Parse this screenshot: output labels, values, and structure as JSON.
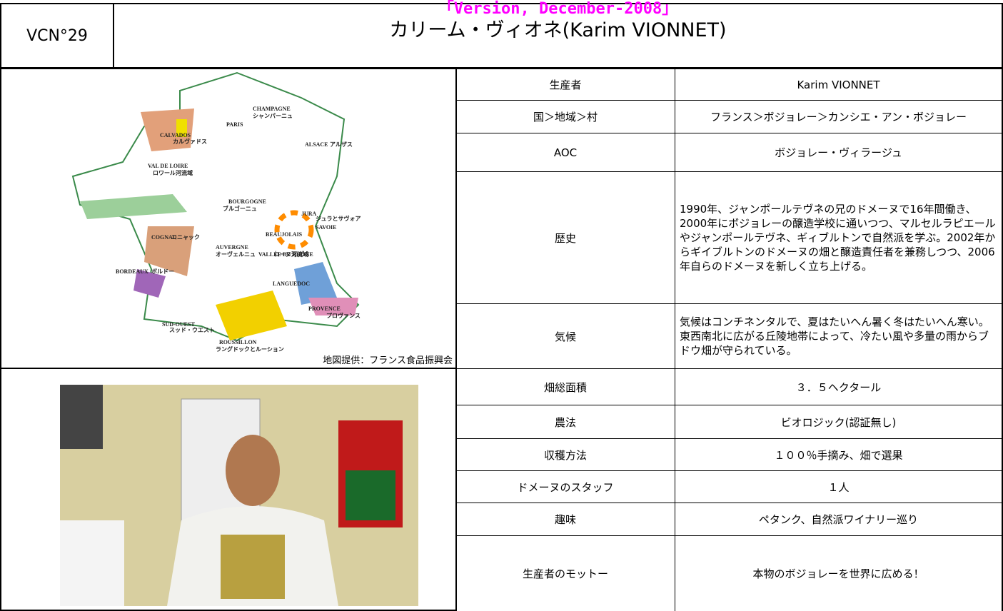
{
  "header": {
    "code": "VCN°29",
    "version": "「Version, December-2008」",
    "title": "カリーム・ヴィオネ(Karim VIONNET)"
  },
  "map": {
    "credit": "地図提供：フランス食品振興会",
    "labels": [
      "CHAMPAGNE",
      "シャンパーニュ",
      "CALVADOS",
      "カルヴァドス",
      "PARIS",
      "ALSACE",
      "アルザス",
      "VAL DE LOIRE",
      "ロワール河流域",
      "BOURGOGNE",
      "ブルゴーニュ",
      "JURA",
      "ジュラとサヴォア",
      "SAVOIE",
      "BEAUJOLAIS",
      "COGNAC",
      "コニャック",
      "AUVERGNE",
      "オーヴェルニュ",
      "VALLÉE DU RHÔNE",
      "ローヌ河流域",
      "BORDEAUX",
      "ボルドー",
      "LANGUEDOC",
      "PROVENCE",
      "プロヴァンス",
      "SUD-OUEST",
      "スッド・ウエスト",
      "ROUSSILLON",
      "ラングドックとルーション"
    ]
  },
  "table": {
    "rows": [
      [
        "生産者",
        "Karim VIONNET"
      ],
      [
        "国＞地域＞村",
        "フランス＞ボジョレー＞カンシエ・アン・ボジョレー"
      ],
      [
        "AOC",
        "ボジョレー・ヴィラージュ"
      ],
      [
        "歴史",
        "1990年、ジャンポールテヴネの兄のドメーヌで16年間働き、2000年にボジョレーの醸造学校に通いつつ、マルセルラピエールやジャンポールテヴネ、ギィブルトンで自然派を学ぶ。2002年からギイブルトンのドメーヌの畑と醸造責任者を兼務しつつ、2006年自らのドメーヌを新しく立ち上げる。"
      ],
      [
        "気候",
        "気候はコンチネンタルで、夏はたいへん暑く冬はたいへん寒い。東西南北に広がる丘陵地帯によって、冷たい風や多量の雨からブドウ畑が守られている。"
      ],
      [
        "畑総面積",
        "３．５ヘクタール"
      ],
      [
        "農法",
        "ビオロジック(認証無し)"
      ],
      [
        "収穫方法",
        "１００％手摘み、畑で選果"
      ],
      [
        "ドメーヌのスタッフ",
        "１人"
      ],
      [
        "趣味",
        "ペタンク、自然派ワイナリー巡り"
      ],
      [
        "生産者のモットー",
        "本物のボジョレーを世界に広める！"
      ]
    ]
  }
}
